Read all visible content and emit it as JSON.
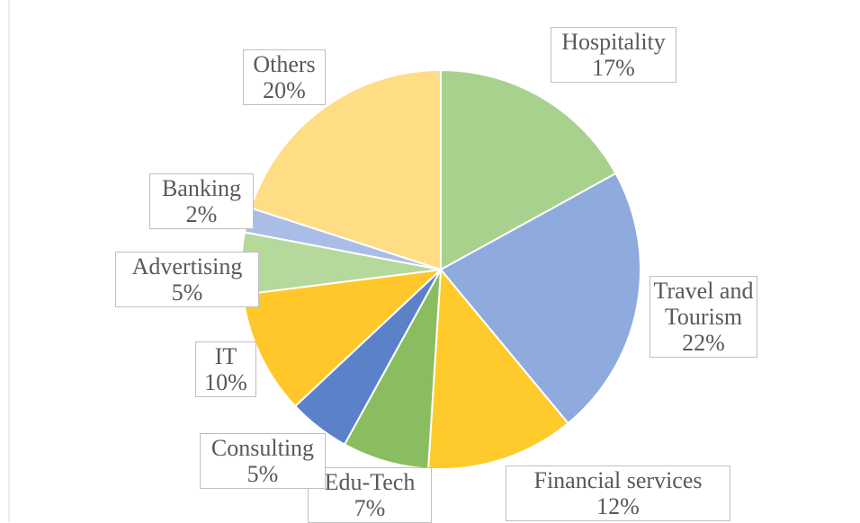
{
  "chart_data": {
    "type": "pie",
    "categories": [
      "Hospitality",
      "Travel and Tourism",
      "Financial services",
      "Edu-Tech",
      "Consulting",
      "IT",
      "Advertising",
      "Banking",
      "Others"
    ],
    "values": [
      17,
      22,
      12,
      7,
      5,
      10,
      5,
      2,
      20
    ],
    "value_labels": [
      "17%",
      "22%",
      "12%",
      "7%",
      "5%",
      "10%",
      "5%",
      "2%",
      "20%"
    ],
    "colors": [
      "#a9d18e",
      "#8faadc",
      "#ffca2c",
      "#8abd5f",
      "#5b82c9",
      "#ffc729",
      "#b5d99b",
      "#a9bde6",
      "#ffdd85"
    ]
  }
}
